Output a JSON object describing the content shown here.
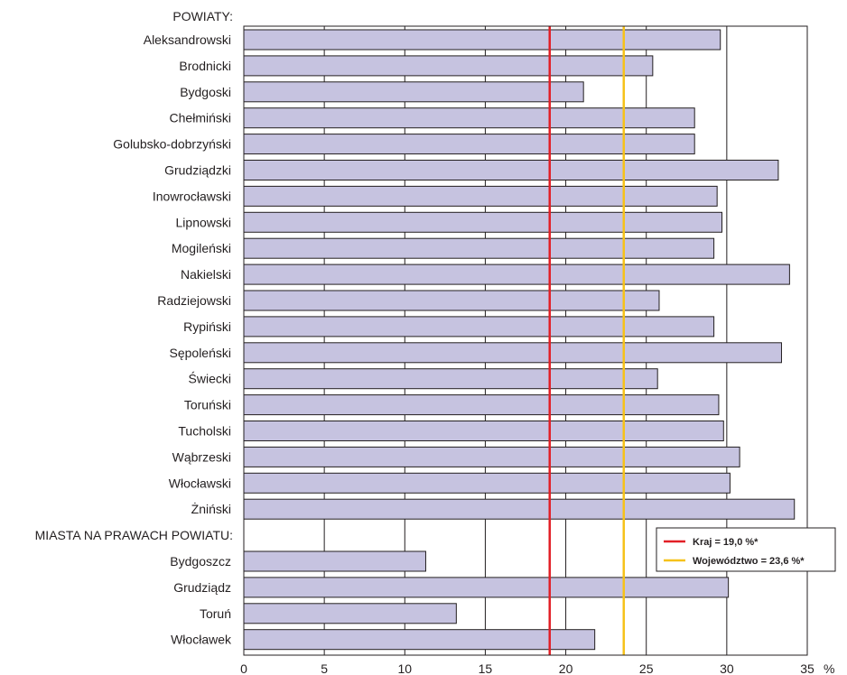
{
  "chart_data": {
    "type": "bar",
    "orientation": "horizontal",
    "section_headers": [
      "POWIATY:",
      "MIASTA NA PRAWACH POWIATU:"
    ],
    "categories": [
      "Aleksandrowski",
      "Brodnicki",
      "Bydgoski",
      "Chełmiński",
      "Golubsko-dobrzyński",
      "Grudziądzki",
      "Inowrocławski",
      "Lipnowski",
      "Mogileński",
      "Nakielski",
      "Radziejowski",
      "Rypiński",
      "Sępoleński",
      "Świecki",
      "Toruński",
      "Tucholski",
      "Wąbrzeski",
      "Włocławski",
      "Żniński",
      "Bydgoszcz",
      "Grudziądz",
      "Toruń",
      "Włocławek"
    ],
    "category_section": [
      0,
      0,
      0,
      0,
      0,
      0,
      0,
      0,
      0,
      0,
      0,
      0,
      0,
      0,
      0,
      0,
      0,
      0,
      0,
      1,
      1,
      1,
      1
    ],
    "values": [
      29.6,
      25.4,
      21.1,
      28.0,
      28.0,
      33.2,
      29.4,
      29.7,
      29.2,
      33.9,
      25.8,
      29.2,
      33.4,
      25.7,
      29.5,
      29.8,
      30.8,
      30.2,
      34.2,
      11.3,
      30.1,
      13.2,
      21.8
    ],
    "bar_color": "#c6c3e0",
    "xlim": [
      0,
      35
    ],
    "xticks": [
      0,
      5,
      10,
      15,
      20,
      25,
      30,
      35
    ],
    "xunit": "%",
    "grid": "vertical",
    "reference_lines": [
      {
        "label": "Kraj = 19,0 %*",
        "value": 19.0,
        "color": "#e21f26"
      },
      {
        "label": "Województwo = 23,6 %*",
        "value": 23.6,
        "color": "#f6c21a"
      }
    ],
    "legend_position": "lower-right"
  }
}
